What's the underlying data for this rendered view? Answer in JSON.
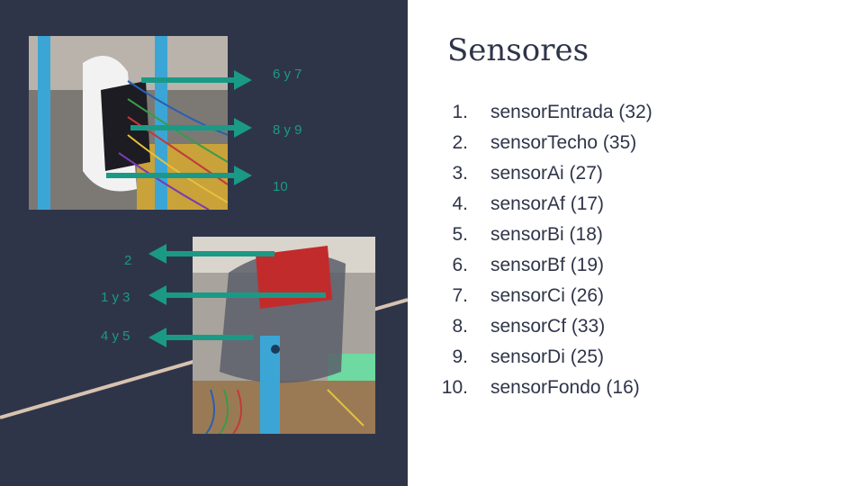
{
  "slide": {
    "title": "Sensores",
    "colors": {
      "panel": "#2f3549",
      "accent": "#1a9a86",
      "diagonal": "#d8c3b0",
      "pole": "#3ba6d6",
      "text": "#2f3549"
    }
  },
  "photo_top": {
    "labels": [
      "6 y 7",
      "8 y 9",
      "10"
    ]
  },
  "photo_bottom": {
    "labels": [
      "2",
      "1 y 3",
      "4 y 5"
    ]
  },
  "sensors": [
    {
      "num": "1.",
      "text": "sensorEntrada (32)"
    },
    {
      "num": "2.",
      "text": "sensorTecho (35)"
    },
    {
      "num": "3.",
      "text": "sensorAi (27)"
    },
    {
      "num": "4.",
      "text": "sensorAf (17)"
    },
    {
      "num": "5.",
      "text": "sensorBi (18)"
    },
    {
      "num": "6.",
      "text": "sensorBf (19)"
    },
    {
      "num": "7.",
      "text": "sensorCi (26)"
    },
    {
      "num": "8.",
      "text": "sensorCf (33)"
    },
    {
      "num": "9.",
      "text": "sensorDi (25)"
    },
    {
      "num": "10.",
      "text": "sensorFondo (16)"
    }
  ]
}
